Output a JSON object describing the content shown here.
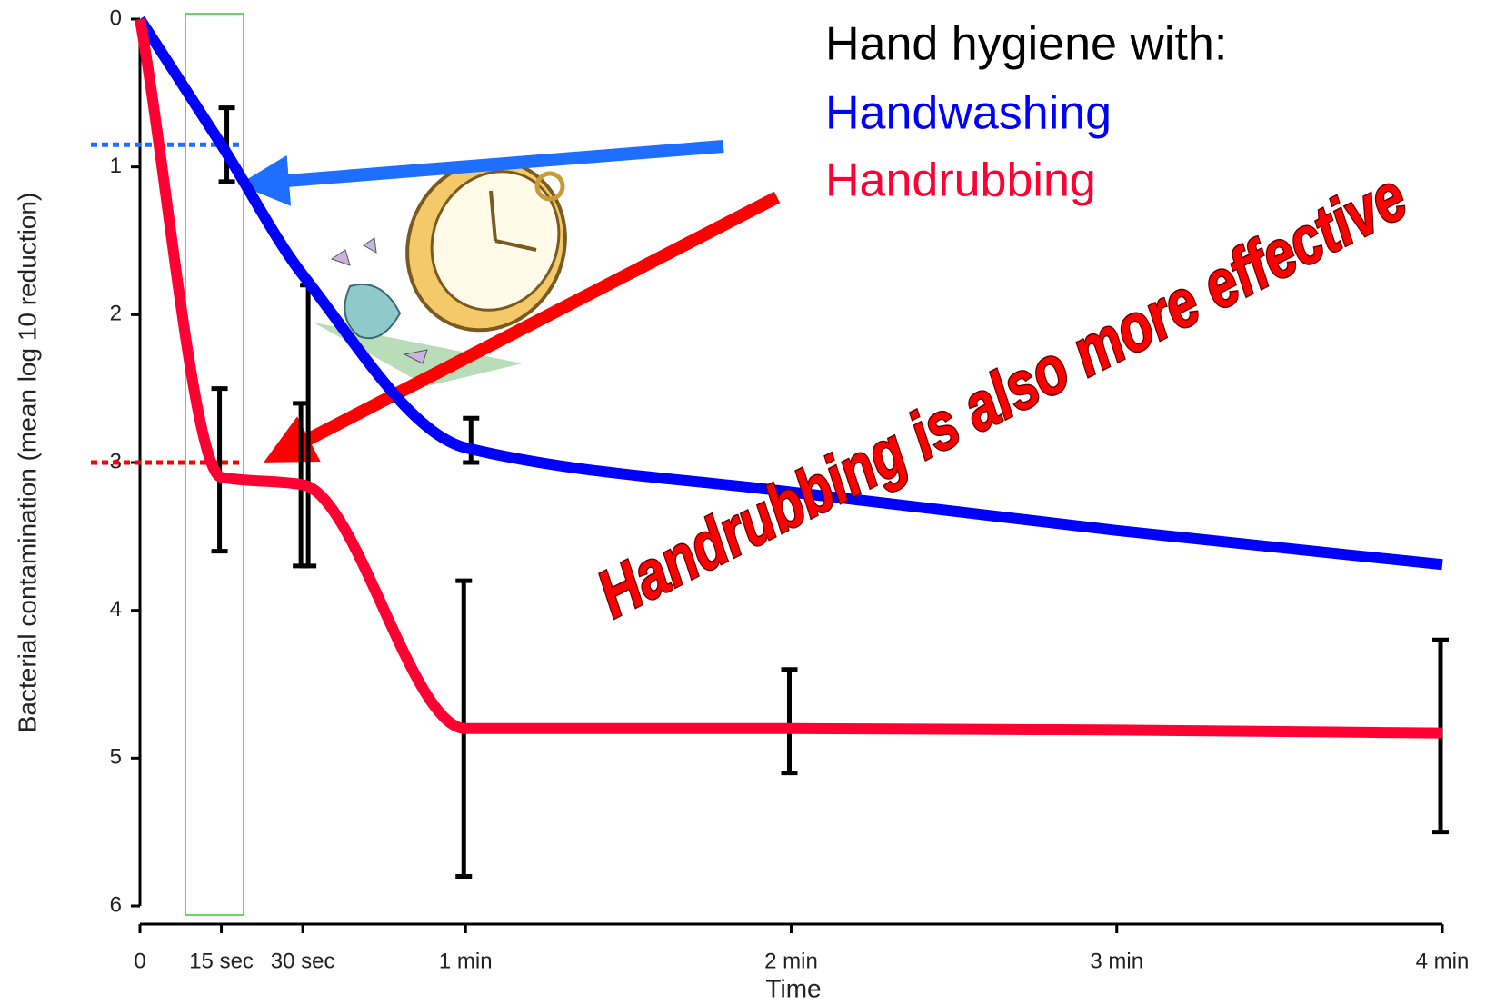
{
  "chart_data": {
    "type": "line",
    "legend_title": "Hand hygiene with:",
    "x_label": "Time",
    "y_label": "Bacterial contamination (mean log 10 reduction)",
    "annotation": "Handrubbing is also more effective",
    "x": [
      0,
      15,
      30,
      60,
      120,
      180,
      240
    ],
    "xlim": [
      0,
      240
    ],
    "xticks": [
      0,
      {
        "value": 15,
        "label": "15 sec"
      },
      {
        "value": 30,
        "label": "30 sec"
      },
      {
        "value": 60,
        "label": "1 min"
      },
      {
        "value": 120,
        "label": "2 min"
      },
      {
        "value": 180,
        "label": "3 min"
      },
      {
        "value": 240,
        "label": "4 min"
      }
    ],
    "ylim": [
      0,
      6
    ],
    "y_inverted": true,
    "yticks": [
      0,
      1,
      2,
      3,
      4,
      5,
      6
    ],
    "series": [
      {
        "name": "Handwashing",
        "color": "#0000ff",
        "values": [
          0,
          0.85,
          1.73,
          2.9,
          3.2,
          3.46,
          3.69
        ],
        "error_bars": [
          null,
          [
            0.6,
            1.1
          ],
          [
            1.8,
            3.7
          ],
          [
            2.7,
            3.0
          ],
          null,
          null,
          null
        ]
      },
      {
        "name": "Handrubbing",
        "color": "#ff0033",
        "values": [
          0,
          3.1,
          3.15,
          4.8,
          4.8,
          4.81,
          4.83
        ],
        "error_bars": [
          null,
          [
            2.5,
            3.6
          ],
          [
            2.6,
            3.7
          ],
          [
            3.8,
            5.8
          ],
          [
            4.4,
            5.1
          ],
          null,
          [
            4.2,
            5.5
          ]
        ]
      }
    ],
    "reference_lines": [
      {
        "value": 0.85,
        "color": "#1e6fff"
      },
      {
        "value": 3,
        "color": "#ff0000"
      }
    ]
  }
}
